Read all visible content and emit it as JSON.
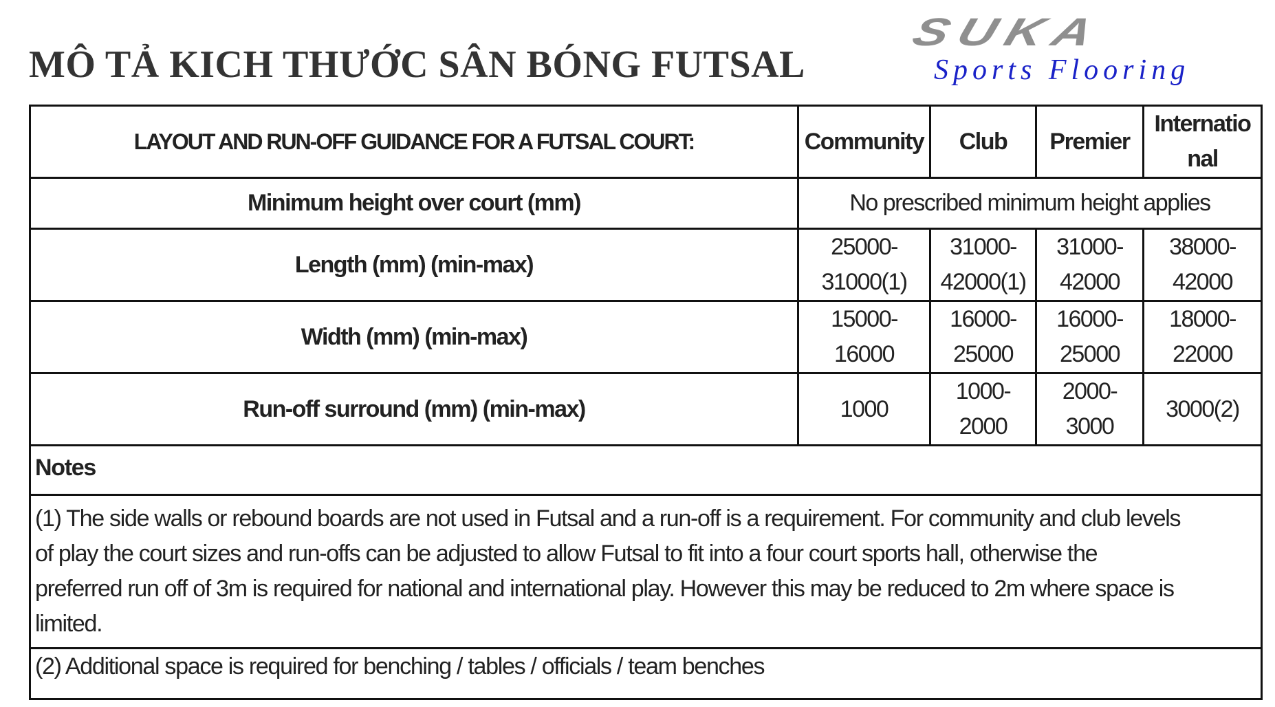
{
  "title": "MÔ TẢ KICH THƯỚC SÂN BÓNG FUTSAL",
  "logo": {
    "brand": "SUKA",
    "tagline": "Sports Flooring"
  },
  "table": {
    "header": {
      "main": "LAYOUT AND RUN-OFF GUIDANCE FOR A FUTSAL COURT:",
      "columns": [
        "Community",
        "Club",
        "Premier",
        "Internatio nal"
      ],
      "columns_lines": [
        [
          "Community"
        ],
        [
          "Club"
        ],
        [
          "Premier"
        ],
        [
          "Internatio",
          "nal"
        ]
      ]
    },
    "rows": [
      {
        "label": "Minimum height over court (mm)",
        "merged_value": "No prescribed minimum height applies"
      },
      {
        "label": "Length (mm) (min-max)",
        "values": [
          [
            "25000-",
            "31000(1)"
          ],
          [
            "31000-",
            "42000(1)"
          ],
          [
            "31000-",
            "42000"
          ],
          [
            "38000-",
            "42000"
          ]
        ]
      },
      {
        "label": "Width (mm) (min-max)",
        "values": [
          [
            "15000-",
            "16000"
          ],
          [
            "16000-",
            "25000"
          ],
          [
            "16000-",
            "25000"
          ],
          [
            "18000-",
            "22000"
          ]
        ]
      },
      {
        "label": "Run-off surround (mm) (min-max)",
        "values": [
          [
            "1000"
          ],
          [
            "1000-",
            "2000"
          ],
          [
            "2000-",
            "3000"
          ],
          [
            "3000(2)"
          ]
        ]
      }
    ],
    "notes": {
      "heading": "Notes",
      "note1_lines": [
        "(1) The side walls or rebound boards are not used in Futsal and a run-off is a requirement. For community and club levels",
        "of play the court sizes and run-offs can be adjusted to allow Futsal to fit into a four court sports hall, otherwise the",
        "preferred run off of 3m is required for national and international play. However this may be reduced to 2m where space is",
        "limited."
      ],
      "note2": "(2) Additional space is required for benching / tables / officials / team benches"
    }
  },
  "colors": {
    "title": "#333333",
    "logo_gray": "#8f8f8f",
    "logo_blue": "#1a22c8",
    "border": "#111111"
  }
}
